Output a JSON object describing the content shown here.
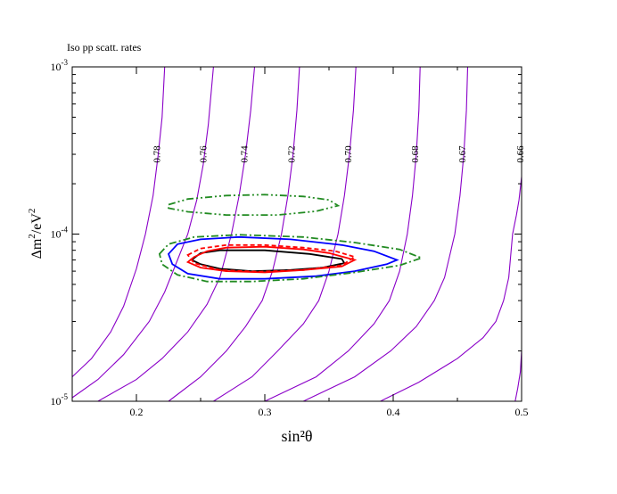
{
  "chart_data": {
    "type": "line",
    "title": "Iso pp scatt. rates",
    "xlabel": "sin²θ",
    "ylabel_base": "Δm",
    "ylabel_sup1": "2",
    "ylabel_mid": "/eV",
    "ylabel_sup2": "2",
    "xlim": [
      0.15,
      0.5
    ],
    "ylim": [
      1e-05,
      0.001
    ],
    "y_scale": "log",
    "x_ticks": [
      {
        "value": 0.2,
        "label": "0.2"
      },
      {
        "value": 0.3,
        "label": "0.3"
      },
      {
        "value": 0.4,
        "label": "0.4"
      },
      {
        "value": 0.5,
        "label": "0.5"
      }
    ],
    "y_ticks": [
      {
        "value": 1e-05,
        "base": "10",
        "exp": "-5"
      },
      {
        "value": 0.0001,
        "base": "10",
        "exp": "-4"
      },
      {
        "value": 0.001,
        "base": "10",
        "exp": "-3"
      }
    ],
    "iso_rate_curves": [
      {
        "label": "0.78",
        "points": [
          [
            0.15,
            1.4e-05
          ],
          [
            0.165,
            1.8e-05
          ],
          [
            0.18,
            2.6e-05
          ],
          [
            0.19,
            3.7e-05
          ],
          [
            0.2,
            6.2e-05
          ],
          [
            0.207,
            0.0001
          ],
          [
            0.213,
            0.00017
          ],
          [
            0.217,
            0.0003
          ],
          [
            0.22,
            0.0005
          ],
          [
            0.222,
            0.001
          ]
        ]
      },
      {
        "label": "0.76",
        "points": [
          [
            0.15,
            1.05e-05
          ],
          [
            0.17,
            1.35e-05
          ],
          [
            0.19,
            1.9e-05
          ],
          [
            0.21,
            3e-05
          ],
          [
            0.222,
            4.5e-05
          ],
          [
            0.232,
            7e-05
          ],
          [
            0.24,
            0.0001
          ],
          [
            0.247,
            0.00016
          ],
          [
            0.252,
            0.00026
          ],
          [
            0.256,
            0.00045
          ],
          [
            0.26,
            0.001
          ]
        ]
      },
      {
        "label": "0.74",
        "points": [
          [
            0.17,
            1e-05
          ],
          [
            0.2,
            1.35e-05
          ],
          [
            0.22,
            1.8e-05
          ],
          [
            0.24,
            2.6e-05
          ],
          [
            0.255,
            3.8e-05
          ],
          [
            0.265,
            5.5e-05
          ],
          [
            0.274,
            0.0001
          ],
          [
            0.28,
            0.00017
          ],
          [
            0.285,
            0.0003
          ],
          [
            0.289,
            0.00055
          ],
          [
            0.292,
            0.001
          ]
        ]
      },
      {
        "label": "0.72",
        "points": [
          [
            0.225,
            1e-05
          ],
          [
            0.25,
            1.4e-05
          ],
          [
            0.27,
            2e-05
          ],
          [
            0.285,
            2.8e-05
          ],
          [
            0.298,
            4e-05
          ],
          [
            0.306,
            6e-05
          ],
          [
            0.313,
            0.0001
          ],
          [
            0.318,
            0.00017
          ],
          [
            0.322,
            0.0003
          ],
          [
            0.325,
            0.00055
          ],
          [
            0.327,
            0.001
          ]
        ]
      },
      {
        "label": "0.70",
        "points": [
          [
            0.26,
            1e-05
          ],
          [
            0.29,
            1.4e-05
          ],
          [
            0.31,
            2e-05
          ],
          [
            0.33,
            2.9e-05
          ],
          [
            0.342,
            4e-05
          ],
          [
            0.35,
            6e-05
          ],
          [
            0.357,
            0.0001
          ],
          [
            0.362,
            0.00017
          ],
          [
            0.366,
            0.0003
          ],
          [
            0.369,
            0.00055
          ],
          [
            0.371,
            0.001
          ]
        ]
      },
      {
        "label": "0.68",
        "points": [
          [
            0.3,
            1e-05
          ],
          [
            0.34,
            1.4e-05
          ],
          [
            0.365,
            2e-05
          ],
          [
            0.385,
            2.9e-05
          ],
          [
            0.397,
            4e-05
          ],
          [
            0.405,
            6e-05
          ],
          [
            0.411,
            0.0001
          ],
          [
            0.415,
            0.00017
          ],
          [
            0.418,
            0.0003
          ],
          [
            0.42,
            0.00055
          ],
          [
            0.421,
            0.001
          ]
        ]
      },
      {
        "label": "0.67",
        "points": [
          [
            0.33,
            1e-05
          ],
          [
            0.37,
            1.4e-05
          ],
          [
            0.398,
            2e-05
          ],
          [
            0.418,
            2.8e-05
          ],
          [
            0.432,
            4e-05
          ],
          [
            0.44,
            5.5e-05
          ],
          [
            0.448,
            0.0001
          ],
          [
            0.452,
            0.00017
          ],
          [
            0.455,
            0.0003
          ],
          [
            0.457,
            0.00055
          ],
          [
            0.458,
            0.001
          ]
        ]
      },
      {
        "label": "0.66",
        "points": [
          [
            0.39,
            1e-05
          ],
          [
            0.42,
            1.3e-05
          ],
          [
            0.45,
            1.8e-05
          ],
          [
            0.47,
            2.4e-05
          ],
          [
            0.48,
            3e-05
          ],
          [
            0.486,
            4e-05
          ],
          [
            0.49,
            5.5e-05
          ],
          [
            0.493,
            0.0001
          ],
          [
            0.496,
            0.00013
          ],
          [
            0.498,
            0.00016
          ],
          [
            0.5,
            0.00022
          ]
        ]
      }
    ],
    "iso_rate_curve_far_right": [
      [
        0.495,
        1e-05
      ],
      [
        0.497,
        1.2e-05
      ],
      [
        0.499,
        1.5e-05
      ],
      [
        0.5,
        2e-05
      ]
    ],
    "contours": [
      {
        "color": "#000000",
        "dash": "",
        "points": [
          [
            0.243,
            7e-05
          ],
          [
            0.25,
            6.6e-05
          ],
          [
            0.265,
            6.2e-05
          ],
          [
            0.29,
            6e-05
          ],
          [
            0.32,
            6.1e-05
          ],
          [
            0.345,
            6.3e-05
          ],
          [
            0.362,
            6.7e-05
          ],
          [
            0.36,
            7.1e-05
          ],
          [
            0.335,
            7.6e-05
          ],
          [
            0.3,
            8e-05
          ],
          [
            0.265,
            8e-05
          ],
          [
            0.25,
            7.7e-05
          ],
          [
            0.243,
            7e-05
          ]
        ]
      },
      {
        "color": "#ff0000",
        "dash": "5,3",
        "points": [
          [
            0.24,
            7.5e-05
          ],
          [
            0.25,
            8.2e-05
          ],
          [
            0.27,
            8.6e-05
          ],
          [
            0.3,
            8.6e-05
          ],
          [
            0.33,
            8.3e-05
          ],
          [
            0.355,
            7.9e-05
          ],
          [
            0.37,
            7.3e-05
          ],
          [
            0.36,
            6.5e-05
          ],
          [
            0.33,
            6.1e-05
          ],
          [
            0.295,
            5.95e-05
          ],
          [
            0.265,
            6.1e-05
          ],
          [
            0.245,
            6.7e-05
          ],
          [
            0.24,
            7.5e-05
          ]
        ]
      },
      {
        "color": "#ff0000",
        "dash": "",
        "points": [
          [
            0.24,
            6.8e-05
          ],
          [
            0.245,
            7.3e-05
          ],
          [
            0.255,
            7.9e-05
          ],
          [
            0.27,
            8.3e-05
          ],
          [
            0.3,
            8.4e-05
          ],
          [
            0.33,
            8.1e-05
          ],
          [
            0.35,
            7.7e-05
          ],
          [
            0.37,
            7e-05
          ],
          [
            0.36,
            6.4e-05
          ],
          [
            0.33,
            6.1e-05
          ],
          [
            0.3,
            5.9e-05
          ],
          [
            0.27,
            6e-05
          ],
          [
            0.25,
            6.3e-05
          ],
          [
            0.24,
            6.8e-05
          ]
        ]
      },
      {
        "color": "#0000ff",
        "dash": "",
        "points": [
          [
            0.225,
            7.6e-05
          ],
          [
            0.232,
            8.7e-05
          ],
          [
            0.25,
            9.3e-05
          ],
          [
            0.28,
            9.6e-05
          ],
          [
            0.32,
            9.3e-05
          ],
          [
            0.36,
            8.6e-05
          ],
          [
            0.385,
            7.9e-05
          ],
          [
            0.403,
            7e-05
          ],
          [
            0.395,
            6.6e-05
          ],
          [
            0.37,
            6e-05
          ],
          [
            0.34,
            5.6e-05
          ],
          [
            0.3,
            5.4e-05
          ],
          [
            0.265,
            5.4e-05
          ],
          [
            0.24,
            5.8e-05
          ],
          [
            0.228,
            6.6e-05
          ],
          [
            0.225,
            7.6e-05
          ]
        ]
      },
      {
        "color": "#228b22",
        "dash": "8,3,2,3",
        "points": [
          [
            0.218,
            7.6e-05
          ],
          [
            0.225,
            8.7e-05
          ],
          [
            0.245,
            9.6e-05
          ],
          [
            0.28,
            9.9e-05
          ],
          [
            0.33,
            9.6e-05
          ],
          [
            0.37,
            8.9e-05
          ],
          [
            0.405,
            8.1e-05
          ],
          [
            0.422,
            7.2e-05
          ],
          [
            0.405,
            6.5e-05
          ],
          [
            0.37,
            5.9e-05
          ],
          [
            0.33,
            5.4e-05
          ],
          [
            0.29,
            5.2e-05
          ],
          [
            0.255,
            5.2e-05
          ],
          [
            0.232,
            5.7e-05
          ],
          [
            0.22,
            6.6e-05
          ],
          [
            0.218,
            7.6e-05
          ]
        ]
      },
      {
        "color": "#228b22",
        "dash": "8,3,2,3,2,3",
        "points": [
          [
            0.225,
            0.00015
          ],
          [
            0.24,
            0.000162
          ],
          [
            0.27,
            0.00017
          ],
          [
            0.3,
            0.000172
          ],
          [
            0.33,
            0.000168
          ],
          [
            0.35,
            0.00016
          ],
          [
            0.357,
            0.000148
          ],
          [
            0.34,
            0.000137
          ],
          [
            0.31,
            0.00013
          ],
          [
            0.27,
            0.00013
          ],
          [
            0.24,
            0.000136
          ],
          [
            0.225,
            0.000143
          ],
          [
            0.225,
            0.00015
          ]
        ]
      }
    ]
  }
}
